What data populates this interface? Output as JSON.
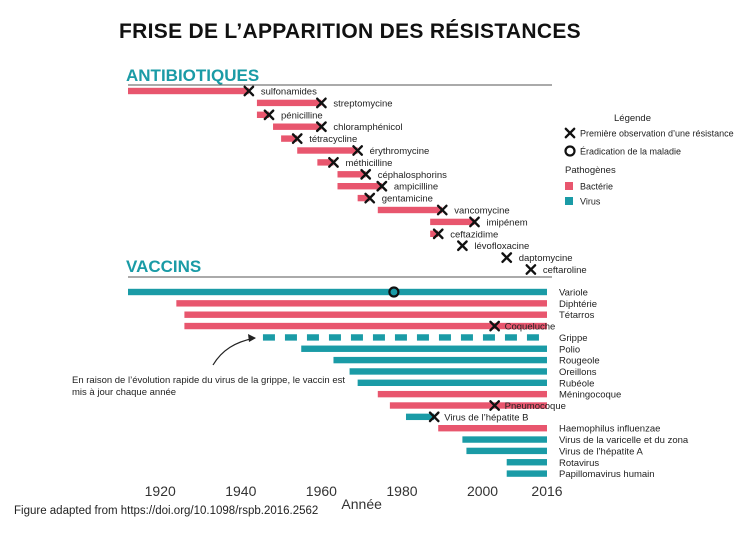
{
  "title": "FRISE DE L’APPARITION DES RÉSISTANCES",
  "caption": "Figure adapted from https://doi.org/10.1098/rspb.2016.2562",
  "colors": {
    "bacteria": "#e8566e",
    "virus": "#1a9ba6",
    "heading": "#1a9ba6",
    "text": "#222222"
  },
  "chart_data": {
    "type": "timeline",
    "xlabel": "Année",
    "xlim": [
      1912,
      2016
    ],
    "ticks": [
      {
        "value": 1920,
        "label": "1920"
      },
      {
        "value": 1940,
        "label": "1940"
      },
      {
        "value": 1960,
        "label": "1960"
      },
      {
        "value": 1980,
        "label": "1980"
      },
      {
        "value": 2000,
        "label": "2000"
      },
      {
        "value": 2016,
        "label": "2016"
      }
    ],
    "legend": {
      "title": "Légende",
      "resistance": "Première observation d’une résistance",
      "eradication": "Éradication de la maladie",
      "pathogens_title": "Pathogènes",
      "bacteria": "Bactérie",
      "virus": "Virus"
    },
    "antibiotics": {
      "heading": "ANTIBIOTIQUES",
      "items": [
        {
          "name": "sulfonamides",
          "start": 1912,
          "end": 1942,
          "resistance": 1942
        },
        {
          "name": "streptomycine",
          "start": 1944,
          "end": 1960,
          "resistance": 1960
        },
        {
          "name": "pénicilline",
          "start": 1944,
          "end": 1947,
          "resistance": 1947
        },
        {
          "name": "chloramphénicol",
          "start": 1948,
          "end": 1960,
          "resistance": 1960
        },
        {
          "name": "tétracycline",
          "start": 1950,
          "end": 1954,
          "resistance": 1954
        },
        {
          "name": "érythromycine",
          "start": 1954,
          "end": 1969,
          "resistance": 1969
        },
        {
          "name": "méthicilline",
          "start": 1959,
          "end": 1963,
          "resistance": 1963
        },
        {
          "name": "céphalosphorins",
          "start": 1964,
          "end": 1971,
          "resistance": 1971
        },
        {
          "name": "ampicilline",
          "start": 1964,
          "end": 1975,
          "resistance": 1975
        },
        {
          "name": "gentamicine",
          "start": 1969,
          "end": 1972,
          "resistance": 1972
        },
        {
          "name": "vancomycine",
          "start": 1974,
          "end": 1990,
          "resistance": 1990
        },
        {
          "name": "imipénem",
          "start": 1987,
          "end": 1998,
          "resistance": 1998
        },
        {
          "name": "ceftazidime",
          "start": 1987,
          "end": 1989,
          "resistance": 1989
        },
        {
          "name": "lévofloxacine",
          "start": 1995,
          "end": 1995,
          "resistance": 1995
        },
        {
          "name": "daptomycine",
          "start": 2006,
          "end": 2006,
          "resistance": 2006
        },
        {
          "name": "ceftaroline",
          "start": 2012,
          "end": 2012,
          "resistance": 2012
        }
      ]
    },
    "vaccines": {
      "heading": "VACCINS",
      "note": "En raison de l’évolution rapide du virus de la grippe, le vaccin est mis à jour chaque année",
      "items": [
        {
          "name": "Variole",
          "pathogen": "virus",
          "start": 1912,
          "end": 2016,
          "eradication": 1978
        },
        {
          "name": "Diphtérie",
          "pathogen": "bacteria",
          "start": 1924,
          "end": 2016
        },
        {
          "name": "Tétarros",
          "pathogen": "bacteria",
          "start": 1926,
          "end": 2016
        },
        {
          "name": "Coqueluche",
          "pathogen": "bacteria",
          "start": 1926,
          "end": 2016,
          "resistance": 2003
        },
        {
          "name": "Grippe",
          "pathogen": "virus",
          "start": 1945,
          "end": 2016,
          "dashed": true
        },
        {
          "name": "Polio",
          "pathogen": "virus",
          "start": 1955,
          "end": 2016
        },
        {
          "name": "Rougeole",
          "pathogen": "virus",
          "start": 1963,
          "end": 2016
        },
        {
          "name": "Oreillons",
          "pathogen": "virus",
          "start": 1967,
          "end": 2016
        },
        {
          "name": "Rubéole",
          "pathogen": "virus",
          "start": 1969,
          "end": 2016
        },
        {
          "name": "Méningocoque",
          "pathogen": "bacteria",
          "start": 1974,
          "end": 2016
        },
        {
          "name": "Pneumocoque",
          "pathogen": "bacteria",
          "start": 1977,
          "end": 2016,
          "resistance": 2003
        },
        {
          "name": "Virus de l’hépatite B",
          "pathogen": "virus",
          "start": 1981,
          "end": 1988,
          "resistance": 1988
        },
        {
          "name": "Haemophilus influenzae",
          "pathogen": "bacteria",
          "start": 1989,
          "end": 2016
        },
        {
          "name": "Virus de la varicelle et du zona",
          "pathogen": "virus",
          "start": 1995,
          "end": 2016
        },
        {
          "name": "Virus de l’hépatite A",
          "pathogen": "virus",
          "start": 1996,
          "end": 2016
        },
        {
          "name": "Rotavirus",
          "pathogen": "virus",
          "start": 2006,
          "end": 2016
        },
        {
          "name": "Papillomavirus humain",
          "pathogen": "virus",
          "start": 2006,
          "end": 2016
        }
      ]
    }
  }
}
